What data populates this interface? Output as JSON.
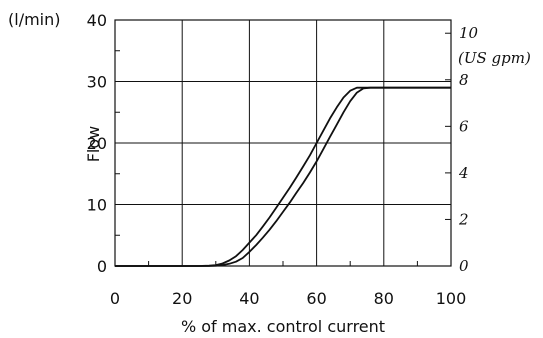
{
  "chart_data": {
    "type": "line",
    "title": "",
    "xlabel": "% of max. control current",
    "ylabel": "Flow",
    "y_unit": "(l/min)",
    "xlim": [
      0,
      100
    ],
    "ylim": [
      0,
      40
    ],
    "x_ticks": [
      "0",
      "20",
      "40",
      "60",
      "80",
      "100"
    ],
    "y_ticks": [
      "0",
      "10",
      "20",
      "30",
      "40"
    ],
    "grid": true,
    "secondary_axis": {
      "unit": "(US gpm)",
      "ticks": [
        "0",
        "2",
        "4",
        "6",
        "8",
        "10"
      ],
      "values": [
        0,
        2,
        4,
        6,
        8,
        10
      ],
      "conversion_lpm_per_unit": 3.785
    },
    "series": [
      {
        "x": [
          0,
          25,
          28,
          30,
          32,
          34,
          36,
          38,
          40,
          42,
          44,
          46,
          48,
          50,
          52,
          54,
          56,
          58,
          60,
          62,
          64,
          66,
          68,
          70,
          72,
          74,
          100
        ],
        "y": [
          0,
          0,
          0.05,
          0.15,
          0.4,
          0.9,
          1.6,
          2.6,
          3.8,
          5.0,
          6.4,
          7.9,
          9.5,
          11.1,
          12.7,
          14.4,
          16.2,
          18.0,
          20.0,
          22.0,
          24.0,
          25.8,
          27.4,
          28.5,
          29.0,
          29.0,
          29.0
        ]
      },
      {
        "x": [
          0,
          28,
          30,
          32,
          34,
          36,
          38,
          40,
          42,
          44,
          46,
          48,
          50,
          52,
          54,
          56,
          58,
          60,
          62,
          64,
          66,
          68,
          70,
          72,
          74,
          76,
          100
        ],
        "y": [
          0,
          0,
          0.05,
          0.15,
          0.35,
          0.7,
          1.3,
          2.3,
          3.4,
          4.6,
          5.9,
          7.3,
          8.8,
          10.3,
          11.9,
          13.5,
          15.2,
          17.0,
          19.0,
          21.0,
          23.0,
          25.0,
          26.8,
          28.2,
          28.9,
          29.0,
          29.0
        ]
      }
    ],
    "colors": {
      "line": "#111111",
      "grid": "#111111"
    }
  }
}
